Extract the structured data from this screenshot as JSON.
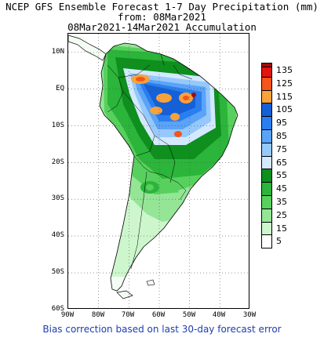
{
  "title": {
    "line1": "NCEP GFS Ensemble Forecast 1-7 Day Precipitation (mm)",
    "line2": "from: 08Mar2021",
    "line3": "08Mar2021-14Mar2021 Accumulation"
  },
  "map": {
    "lon_range": [
      -90,
      -30
    ],
    "lat_range": [
      -60,
      15
    ],
    "lat_labels": [
      "10N",
      "EQ",
      "10S",
      "20S",
      "30S",
      "40S",
      "50S",
      "60S"
    ],
    "lon_labels": [
      "90W",
      "80W",
      "70W",
      "60W",
      "50W",
      "40W",
      "30W"
    ],
    "gridlines": "dotted"
  },
  "legend": {
    "levels": [
      {
        "label": "135",
        "color": "#e0150f"
      },
      {
        "label": "125",
        "color": "#f5541a"
      },
      {
        "label": "115",
        "color": "#f7a23a"
      },
      {
        "label": "105",
        "color": "#1560d6"
      },
      {
        "label": "95",
        "color": "#2a7ef0"
      },
      {
        "label": "85",
        "color": "#5aa3f7"
      },
      {
        "label": "75",
        "color": "#96c8fb"
      },
      {
        "label": "65",
        "color": "#d2e9ff"
      },
      {
        "label": "55",
        "color": "#0e8f1e"
      },
      {
        "label": "45",
        "color": "#2bb53a"
      },
      {
        "label": "35",
        "color": "#58d05e"
      },
      {
        "label": "25",
        "color": "#94e596"
      },
      {
        "label": "15",
        "color": "#cdf6cd"
      },
      {
        "label": "5",
        "color": "#ffffff"
      },
      {
        "label": "",
        "color": "#a50a0a"
      }
    ]
  },
  "footer": "Bias correction based on last 30-day forecast error"
}
